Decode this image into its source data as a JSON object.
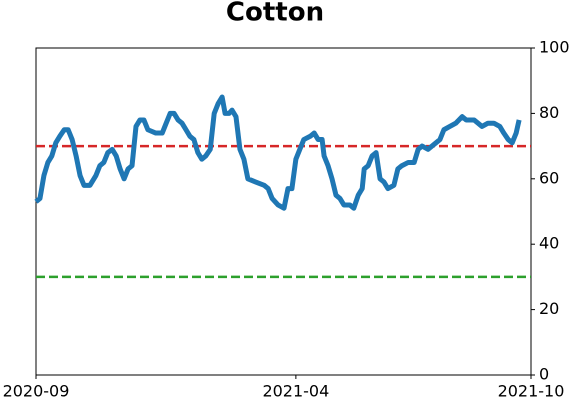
{
  "chart_data": {
    "type": "line",
    "title": "Cotton",
    "x": [
      0,
      0.8,
      1.6,
      2.4,
      3.2,
      4.0,
      4.8,
      5.7,
      6.5,
      7.3,
      8.1,
      8.9,
      9.7,
      10.9,
      12.1,
      12.9,
      13.7,
      14.5,
      15.4,
      16.2,
      17.0,
      17.8,
      18.6,
      19.4,
      20.2,
      21.0,
      21.8,
      22.6,
      24.2,
      25.5,
      26.3,
      27.1,
      27.9,
      28.7,
      29.5,
      30.3,
      31.1,
      31.9,
      32.7,
      33.5,
      34.3,
      35.2,
      36.0,
      36.8,
      37.6,
      38.2,
      39.0,
      39.6,
      40.4,
      41.2,
      42.0,
      42.8,
      44.4,
      46.1,
      46.9,
      47.7,
      48.9,
      50.1,
      50.9,
      51.7,
      52.5,
      53.3,
      54.1,
      55.4,
      56.2,
      57.0,
      57.8,
      58.2,
      59.0,
      59.8,
      60.6,
      61.4,
      62.2,
      63.4,
      64.2,
      65.1,
      65.9,
      66.3,
      67.1,
      67.9,
      68.7,
      69.5,
      70.3,
      71.1,
      72.3,
      73.1,
      73.9,
      75.2,
      76.4,
      77.2,
      78.0,
      79.2,
      80.0,
      80.8,
      81.6,
      82.4,
      83.6,
      84.8,
      86.1,
      86.9,
      87.7,
      88.5,
      89.3,
      90.1,
      91.3,
      92.5,
      93.7,
      94.5,
      95.4,
      96.2,
      97.0,
      97.6
    ],
    "series": [
      {
        "color": "#1f77b4",
        "values": [
          53,
          54,
          61,
          65,
          67,
          71,
          73,
          75,
          75,
          72,
          67,
          61,
          58,
          58,
          61,
          64,
          65,
          68,
          69,
          67,
          63,
          60,
          63,
          64,
          76,
          78,
          78,
          75,
          74,
          74,
          77,
          80,
          80,
          78,
          77,
          75,
          73,
          72,
          68,
          66,
          67,
          69,
          80,
          83,
          85,
          80,
          80,
          81,
          79,
          69,
          66,
          60,
          59,
          58,
          57,
          54,
          52,
          51,
          57,
          57,
          66,
          69,
          72,
          73,
          74,
          72,
          72,
          67,
          64,
          60,
          55,
          54,
          52,
          52,
          51,
          55,
          57,
          63,
          64,
          67,
          68,
          60,
          59,
          57,
          58,
          63,
          64,
          65,
          65,
          69,
          70,
          69,
          70,
          71,
          72,
          75,
          76,
          77,
          79,
          78,
          78,
          78,
          77,
          76,
          77,
          77,
          76,
          74,
          72,
          71,
          74,
          78
        ]
      }
    ],
    "xlim": [
      0,
      100
    ],
    "xticks": [
      {
        "value": 0,
        "label": "2020-09"
      },
      {
        "value": 52.5,
        "label": "2021-04"
      },
      {
        "value": 100,
        "label": "2021-10"
      }
    ],
    "ylim": [
      0,
      100
    ],
    "yticks": [
      0,
      20,
      40,
      60,
      80,
      100
    ],
    "hlines": [
      {
        "value": 70,
        "color": "#d62728"
      },
      {
        "value": 30,
        "color": "#2ca02c"
      }
    ]
  }
}
